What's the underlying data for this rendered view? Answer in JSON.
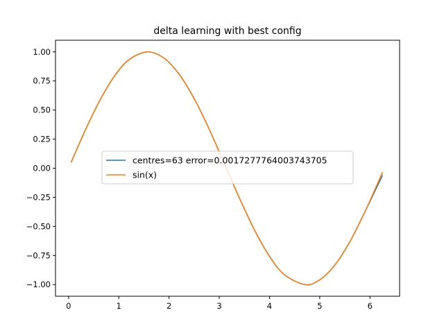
{
  "chart_data": {
    "type": "line",
    "title": "delta learning with best config",
    "xlabel": "",
    "ylabel": "",
    "xlim": [
      -0.26,
      6.59
    ],
    "ylim": [
      -1.1,
      1.1
    ],
    "xticks": [
      0,
      1,
      2,
      3,
      4,
      5,
      6
    ],
    "yticks": [
      -1.0,
      -0.75,
      -0.5,
      -0.25,
      0.0,
      0.25,
      0.5,
      0.75,
      1.0
    ],
    "xtick_labels": [
      "0",
      "1",
      "2",
      "3",
      "4",
      "5",
      "6"
    ],
    "ytick_labels": [
      "−1.00",
      "−0.75",
      "−0.50",
      "−0.25",
      "0.00",
      "0.25",
      "0.50",
      "0.75",
      "1.00"
    ],
    "grid": false,
    "legend_position": "center-left",
    "series": [
      {
        "name": "centres=63 error=0.0017277764003743705",
        "color": "#1f77b4",
        "x": [
          0.05,
          0.3,
          0.6,
          0.9,
          1.2,
          1.5708,
          1.9,
          2.2,
          2.5,
          2.8,
          3.1416,
          3.4,
          3.7,
          4.0,
          4.3,
          4.7124,
          5.0,
          5.3,
          5.6,
          5.9,
          6.25
        ],
        "y": [
          0.05,
          0.2955,
          0.5646,
          0.7833,
          0.932,
          1.0,
          0.9463,
          0.8085,
          0.5985,
          0.335,
          0.0,
          -0.2555,
          -0.5298,
          -0.7568,
          -0.9162,
          -1.0,
          -0.9589,
          -0.8323,
          -0.6313,
          -0.3738,
          -0.06
        ]
      },
      {
        "name": "sin(x)",
        "color": "#ff7f0e",
        "x": [
          0.05,
          0.3,
          0.6,
          0.9,
          1.2,
          1.5708,
          1.9,
          2.2,
          2.5,
          2.8,
          3.1416,
          3.4,
          3.7,
          4.0,
          4.3,
          4.7124,
          5.0,
          5.3,
          5.6,
          5.9,
          6.25
        ],
        "y": [
          0.05,
          0.2955,
          0.5646,
          0.7833,
          0.932,
          1.0,
          0.9463,
          0.8085,
          0.5985,
          0.335,
          0.0,
          -0.2555,
          -0.5298,
          -0.7568,
          -0.9162,
          -1.0,
          -0.9589,
          -0.8323,
          -0.6313,
          -0.3738,
          -0.0332
        ]
      }
    ]
  }
}
